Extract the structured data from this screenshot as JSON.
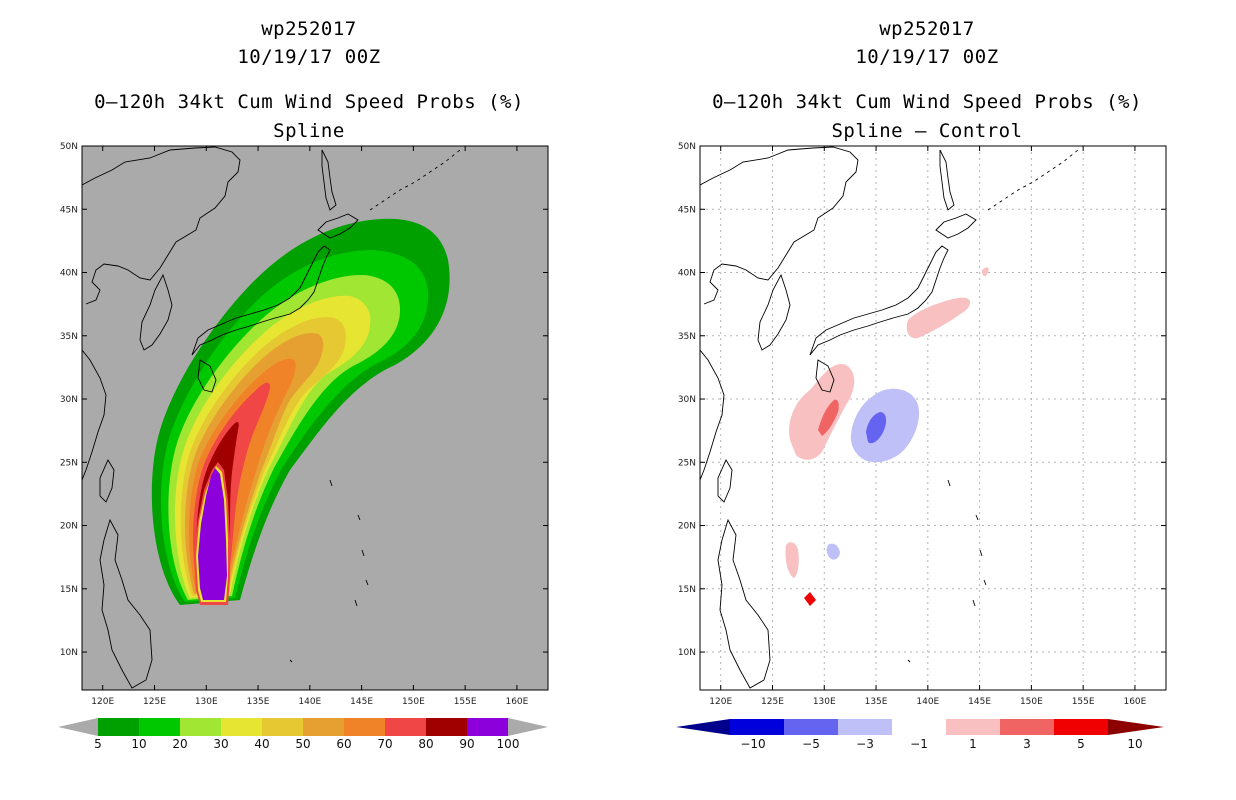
{
  "colors": {
    "land_bg": "#aaaaaa",
    "coast": "#000000",
    "grid": "#b5b5b5"
  },
  "axes": {
    "lon_ticks": [
      "120E",
      "125E",
      "130E",
      "135E",
      "140E",
      "145E",
      "150E",
      "155E",
      "160E"
    ],
    "lat_ticks": [
      "50N",
      "45N",
      "40N",
      "35N",
      "30N",
      "25N",
      "20N",
      "15N",
      "10N"
    ]
  },
  "left_panel": {
    "storm_id": "wp252017",
    "datetime": "10/19/17 00Z",
    "title": "0–120h 34kt Cum Wind Speed Probs (%)",
    "subtitle": "Spline",
    "colorbar": {
      "labels": [
        "5",
        "10",
        "20",
        "30",
        "40",
        "50",
        "60",
        "70",
        "80",
        "90",
        "100"
      ],
      "colors": [
        "#00a000",
        "#00c800",
        "#a0e632",
        "#e6e632",
        "#e6c832",
        "#e6a032",
        "#f08228",
        "#f04646",
        "#a00000",
        "#8c00dc"
      ],
      "end_color": "#aaaaaa"
    }
  },
  "right_panel": {
    "storm_id": "wp252017",
    "datetime": "10/19/17 00Z",
    "title": "0–120h 34kt Cum Wind Speed Probs (%)",
    "subtitle": "Spline – Control",
    "colorbar": {
      "labels": [
        "−10",
        "−5",
        "−3",
        "−1",
        "1",
        "3",
        "5",
        "10"
      ],
      "colors": [
        "#0000dc",
        "#6464f0",
        "#c0c0f8",
        "#ffffff",
        "#f8c0c0",
        "#f06464",
        "#f00000"
      ],
      "low_end": "#00008c",
      "high_end": "#8c0000"
    }
  }
}
